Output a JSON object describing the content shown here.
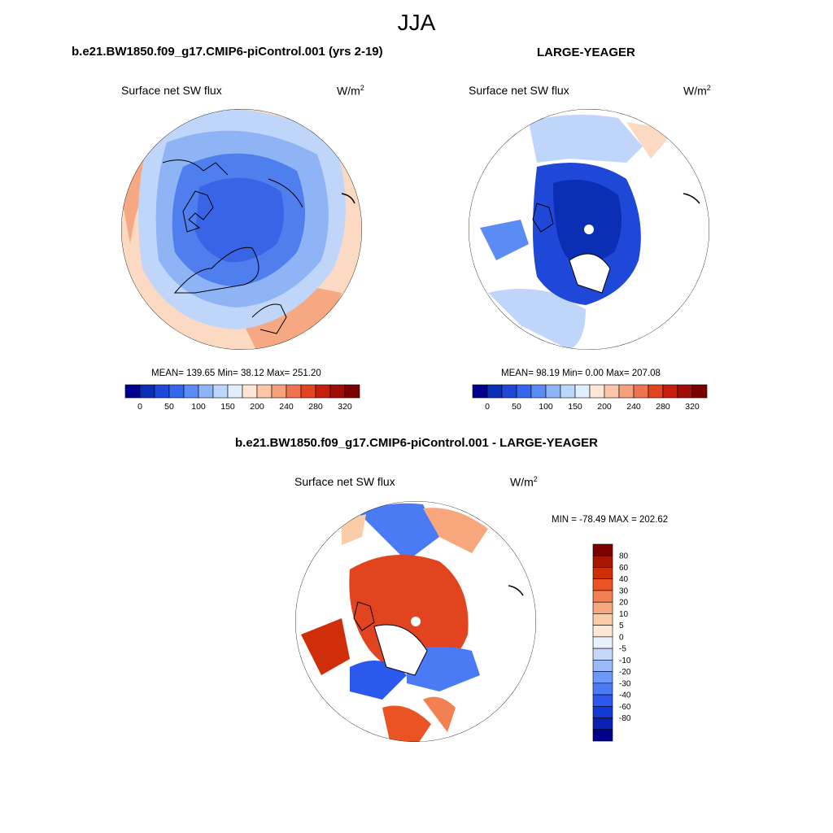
{
  "figure": {
    "title": "JJA",
    "variable": "Surface net SW flux",
    "units_base": "W/m",
    "units_exp": "2"
  },
  "colors": {
    "abs_scale": [
      "#00008e",
      "#0a2fb4",
      "#1f47d8",
      "#3467ec",
      "#5a8cf4",
      "#8db4f7",
      "#bdd6fb",
      "#e3eefd",
      "#fde6d6",
      "#fbc7a8",
      "#f6a07d",
      "#f07351",
      "#e1441e",
      "#c61e0c",
      "#a00d05",
      "#7a0000"
    ],
    "diff_scale": [
      "#00008a",
      "#0a22b4",
      "#1238d6",
      "#2b59ee",
      "#4b7af5",
      "#6e98f7",
      "#9cb9f9",
      "#c5d8fb",
      "#e7f0fe",
      "#fde8d8",
      "#fbcca8",
      "#f7a77b",
      "#f28050",
      "#ea5423",
      "#cf2e09",
      "#a81503",
      "#7d0000"
    ]
  },
  "chart_data": [
    {
      "type": "polar_contour_map",
      "panel_title": "b.e21.BW1850.f09_g17.CMIP6-piControl.001 (yrs 2-19)",
      "subtitle": "Surface net SW flux",
      "units": "W/m2",
      "stats_text": "MEAN= 139.65  Min=  38.12  Max= 251.20",
      "mean": 139.65,
      "min": 38.12,
      "max": 251.2,
      "colorbar_labels": [
        "0",
        "50",
        "100",
        "150",
        "200",
        "240",
        "280",
        "320"
      ],
      "colorbar_orientation": "horizontal"
    },
    {
      "type": "polar_contour_map",
      "panel_title": "LARGE-YEAGER",
      "subtitle": "Surface net SW flux",
      "units": "W/m2",
      "stats_text": "MEAN=  98.19  Min=    0.00  Max= 207.08",
      "mean": 98.19,
      "min": 0.0,
      "max": 207.08,
      "colorbar_labels": [
        "0",
        "50",
        "100",
        "150",
        "200",
        "240",
        "280",
        "320"
      ],
      "colorbar_orientation": "horizontal"
    },
    {
      "type": "polar_contour_map",
      "panel_title": "b.e21.BW1850.f09_g17.CMIP6-piControl.001 - LARGE-YEAGER",
      "subtitle": "Surface net SW flux",
      "units": "W/m2",
      "stats_text": "MIN = -78.49 MAX = 202.62",
      "min": -78.49,
      "max": 202.62,
      "colorbar_labels": [
        "80",
        "60",
        "40",
        "30",
        "20",
        "10",
        "5",
        "0",
        "-5",
        "-10",
        "-20",
        "-30",
        "-40",
        "-60",
        "-80"
      ],
      "colorbar_orientation": "vertical"
    }
  ]
}
